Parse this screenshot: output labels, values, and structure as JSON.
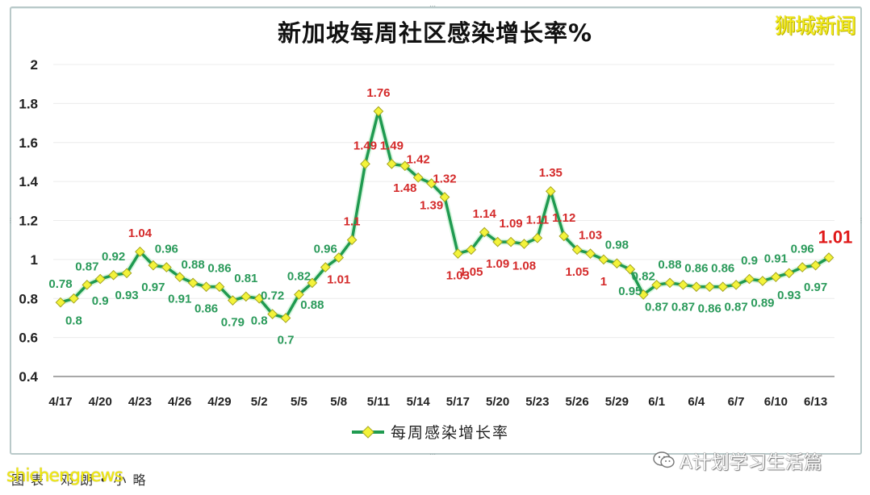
{
  "chart_data": {
    "type": "line",
    "title": "新加坡每周社区感染增长率%",
    "xlabel": "",
    "ylabel": "",
    "ylim": [
      0.4,
      2.0
    ],
    "yticks": [
      0.4,
      0.6,
      0.8,
      1,
      1.2,
      1.4,
      1.6,
      1.8,
      2
    ],
    "ytick_labels": [
      "0.4",
      "0.6",
      "0.8",
      "1",
      "1.2",
      "1.4",
      "1.6",
      "1.8",
      "2"
    ],
    "grid": true,
    "legend_position": "bottom",
    "xtick_labels": [
      "4/17",
      "4/20",
      "4/23",
      "4/26",
      "4/29",
      "5/2",
      "5/5",
      "5/8",
      "5/11",
      "5/14",
      "5/17",
      "5/20",
      "5/23",
      "5/26",
      "5/29",
      "6/1",
      "6/4",
      "6/7",
      "6/10",
      "6/13"
    ],
    "x": [
      "4/17",
      "4/18",
      "4/19",
      "4/20",
      "4/21",
      "4/22",
      "4/23",
      "4/24",
      "4/25",
      "4/26",
      "4/27",
      "4/28",
      "4/29",
      "4/30",
      "5/1",
      "5/2",
      "5/3",
      "5/4",
      "5/5",
      "5/6",
      "5/7",
      "5/8",
      "5/9",
      "5/10",
      "5/11",
      "5/12",
      "5/13",
      "5/14",
      "5/15",
      "5/16",
      "5/17",
      "5/18",
      "5/19",
      "5/20",
      "5/21",
      "5/22",
      "5/23",
      "5/24",
      "5/25",
      "5/26",
      "5/27",
      "5/28",
      "5/29",
      "5/30",
      "5/31",
      "6/1",
      "6/2",
      "6/3",
      "6/4",
      "6/5",
      "6/6",
      "6/7",
      "6/8",
      "6/9",
      "6/10",
      "6/11",
      "6/12",
      "6/13",
      "6/14"
    ],
    "series": [
      {
        "name": "每周感染增长率",
        "color": "#1f9a50",
        "marker_color": "#f3f33a",
        "values": [
          0.78,
          0.8,
          0.87,
          0.9,
          0.92,
          0.93,
          1.04,
          0.97,
          0.96,
          0.91,
          0.88,
          0.86,
          0.86,
          0.79,
          0.81,
          0.8,
          0.72,
          0.7,
          0.82,
          0.88,
          0.96,
          1.01,
          1.1,
          1.49,
          1.76,
          1.49,
          1.48,
          1.42,
          1.39,
          1.32,
          1.03,
          1.05,
          1.14,
          1.09,
          1.09,
          1.08,
          1.11,
          1.35,
          1.12,
          1.05,
          1.03,
          1,
          0.98,
          0.95,
          0.82,
          0.87,
          0.88,
          0.87,
          0.86,
          0.86,
          0.86,
          0.87,
          0.9,
          0.89,
          0.91,
          0.93,
          0.96,
          0.97,
          1.01
        ],
        "labels": [
          "0.78",
          "0.8",
          "0.87",
          "0.9",
          "0.92",
          "0.93",
          "1.04",
          "0.97",
          "0.96",
          "0.91",
          "0.88",
          "0.86",
          "0.86",
          "0.79",
          "0.81",
          "0.8",
          "0.72",
          "0.7",
          "0.82",
          "0.88",
          "0.96",
          "1.01",
          "1.1",
          "1.49",
          "1.76",
          "1.49",
          "1.48",
          "1.42",
          "1.39",
          "1.32",
          "1.03",
          "1.05",
          "1.14",
          "1.09",
          "1.09",
          "1.08",
          "1.11",
          "1.35",
          "1.12",
          "1.05",
          "1.03",
          "1",
          "0.98",
          "0.95",
          "0.82",
          "0.87",
          "0.88",
          "0.87",
          "0.86",
          "0.86",
          "0.86",
          "0.87",
          "0.9",
          "0.89",
          "0.91",
          "0.93",
          "0.96",
          "0.97",
          "1.01"
        ],
        "label_positions": [
          "a",
          "b",
          "a",
          "b",
          "a",
          "b",
          "a",
          "b",
          "a",
          "b",
          "a",
          "b",
          "a",
          "b",
          "a",
          "b",
          "a",
          "b",
          "a",
          "b",
          "a",
          "b",
          "a",
          "a",
          "a",
          "a",
          "b",
          "a",
          "b",
          "a",
          "b",
          "b",
          "a",
          "b",
          "a",
          "b",
          "a",
          "a",
          "a",
          "b",
          "a",
          "b",
          "a",
          "b",
          "a",
          "b",
          "a",
          "b",
          "a",
          "b",
          "a",
          "b",
          "a",
          "b",
          "a",
          "b",
          "a",
          "b",
          "a"
        ]
      }
    ],
    "annotation_colors": {
      "above_one": "#d42a2a",
      "below_one": "#2a9a5a",
      "latest": "#e01818"
    }
  },
  "header": {
    "title": "新加坡每周社区感染增长率%",
    "brand": "狮城新闻"
  },
  "legend": {
    "label": "每周感染增长率"
  },
  "watermarks": {
    "left_overlay": "shichengnews",
    "left_under": "图表  邓朗•小略",
    "right": "A计划学习生活篇"
  }
}
